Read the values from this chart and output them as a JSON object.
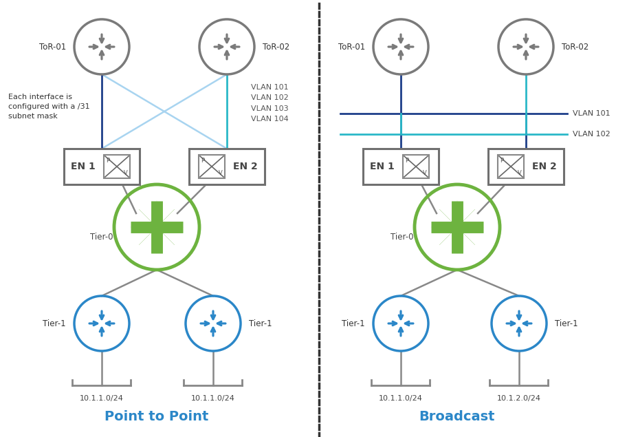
{
  "left_title": "Point to Point",
  "right_title": "Broadcast",
  "bg_color": "#ffffff",
  "gray_color": "#7a7a7a",
  "green_color": "#6db33f",
  "blue_color": "#2b87c8",
  "light_blue": "#a8d4f0",
  "dark_blue": "#1e3f8a",
  "teal_color": "#2ab8c8",
  "left_annotation": "Each interface is\nconfigured with a /31\nsubnet mask",
  "left_vlan_text": "VLAN 101\nVLAN 102\nVLAN 103\nVLAN 104",
  "right_vlan_101": "VLAN 101",
  "right_vlan_102": "VLAN 102",
  "left_subnet1": "10.1.1.0/24",
  "left_subnet2": "10.1.1.0/24",
  "right_subnet1": "10.1.1.0/24",
  "right_subnet2": "10.1.2.0/24"
}
